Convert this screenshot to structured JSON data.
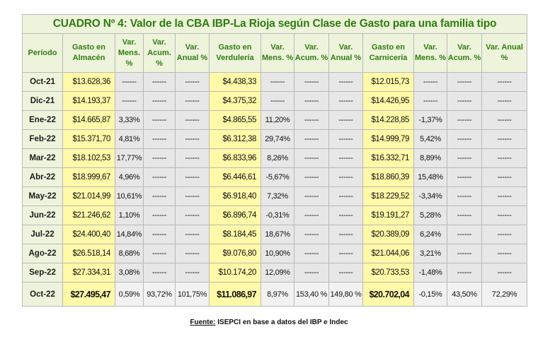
{
  "title": "CUADRO Nº 4: Valor de la CBA IBP-La Rioja según Clase de Gasto para una familia tipo",
  "headers": {
    "periodo": "Período",
    "almacen": "Gasto en Almacén",
    "verduleria": "Gasto en Verdulería",
    "carniceria": "Gasto en Carnicería",
    "var_mens": "Var. Mens. %",
    "var_acum": "Var. Acum. %",
    "var_anual": "Var. Anual %"
  },
  "rows": [
    {
      "periodo": "Oct-21",
      "alm": "$13.628,36",
      "alm_m": "------",
      "alm_ac": "------",
      "alm_an": "------",
      "ver": "$4.438,33",
      "ver_m": "------",
      "ver_ac": "------",
      "ver_an": "------",
      "car": "$12.015,73",
      "car_m": "------",
      "car_ac": "------",
      "car_an": "------"
    },
    {
      "periodo": "Dic-21",
      "alm": "$14.193,37",
      "alm_m": "------",
      "alm_ac": "------",
      "alm_an": "------",
      "ver": "$4.375,32",
      "ver_m": "------",
      "ver_ac": "------",
      "ver_an": "------",
      "car": "$14.426,95",
      "car_m": "------",
      "car_ac": "------",
      "car_an": "------"
    },
    {
      "periodo": "Ene-22",
      "alm": "$14.665,87",
      "alm_m": "3,33%",
      "alm_ac": "------",
      "alm_an": "------",
      "ver": "$4.865,55",
      "ver_m": "11,20%",
      "ver_ac": "------",
      "ver_an": "------",
      "car": "$14.228,85",
      "car_m": "-1,37%",
      "car_ac": "------",
      "car_an": "------"
    },
    {
      "periodo": "Feb-22",
      "alm": "$15.371,70",
      "alm_m": "4,81%",
      "alm_ac": "------",
      "alm_an": "------",
      "ver": "$6.312,38",
      "ver_m": "29,74%",
      "ver_ac": "------",
      "ver_an": "------",
      "car": "$14.999,79",
      "car_m": "5,42%",
      "car_ac": "------",
      "car_an": "------"
    },
    {
      "periodo": "Mar-22",
      "alm": "$18.102,53",
      "alm_m": "17,77%",
      "alm_ac": "------",
      "alm_an": "------",
      "ver": "$6.833,96",
      "ver_m": "8,26%",
      "ver_ac": "------",
      "ver_an": "------",
      "car": "$16.332,71",
      "car_m": "8,89%",
      "car_ac": "------",
      "car_an": "------"
    },
    {
      "periodo": "Abr-22",
      "alm": "$18.999,67",
      "alm_m": "4,96%",
      "alm_ac": "------",
      "alm_an": "------",
      "ver": "$6.446,61",
      "ver_m": "-5,67%",
      "ver_ac": "------",
      "ver_an": "------",
      "car": "$18.860,39",
      "car_m": "15,48%",
      "car_ac": "------",
      "car_an": "------"
    },
    {
      "periodo": "May-22",
      "alm": "$21.014,99",
      "alm_m": "10,61%",
      "alm_ac": "------",
      "alm_an": "------",
      "ver": "$6.918,40",
      "ver_m": "7,32%",
      "ver_ac": "------",
      "ver_an": "------",
      "car": "$18.229,52",
      "car_m": "-3,34%",
      "car_ac": "------",
      "car_an": "------"
    },
    {
      "periodo": "Jun-22",
      "alm": "$21.246,62",
      "alm_m": "1,10%",
      "alm_ac": "------",
      "alm_an": "------",
      "ver": "$6.896,74",
      "ver_m": "-0,31%",
      "ver_ac": "------",
      "ver_an": "------",
      "car": "$19.191,27",
      "car_m": "5,28%",
      "car_ac": "------",
      "car_an": "------"
    },
    {
      "periodo": "Jul-22",
      "alm": "$24.400,40",
      "alm_m": "14,84%",
      "alm_ac": "------",
      "alm_an": "------",
      "ver": "$8.184,45",
      "ver_m": "18,67%",
      "ver_ac": "------",
      "ver_an": "------",
      "car": "$20.389,09",
      "car_m": "6,24%",
      "car_ac": "------",
      "car_an": "------"
    },
    {
      "periodo": "Ago-22",
      "alm": "$26.518,14",
      "alm_m": "8,68%",
      "alm_ac": "------",
      "alm_an": "------",
      "ver": "$9.076,80",
      "ver_m": "10,90%",
      "ver_ac": "------",
      "ver_an": "------",
      "car": "$21.044,06",
      "car_m": "3,21%",
      "car_ac": "------",
      "car_an": "------"
    },
    {
      "periodo": "Sep-22",
      "alm": "$27.334,31",
      "alm_m": "3,08%",
      "alm_ac": "------",
      "alm_an": "------",
      "ver": "$10.174,20",
      "ver_m": "12,09%",
      "ver_ac": "------",
      "ver_an": "------",
      "car": "$20.733,53",
      "car_m": "-1,48%",
      "car_ac": "------",
      "car_an": "------"
    },
    {
      "periodo": "Oct-22",
      "alm": "$27.495,47",
      "alm_m": "0,59%",
      "alm_ac": "93,72%",
      "alm_an": "101,75%",
      "ver": "$11.086,97",
      "ver_m": "8,97%",
      "ver_ac": "153,40 %",
      "ver_an": "149,80 %",
      "car": "$20.702,04",
      "car_m": "-0,15%",
      "car_ac": "43,50%",
      "car_an": "72,29%"
    }
  ],
  "source": {
    "label": "Fuente:",
    "text": " ISEPCI en base a datos del IBP e Indec"
  }
}
